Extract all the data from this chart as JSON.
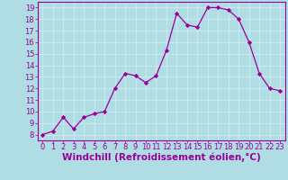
{
  "x": [
    0,
    1,
    2,
    3,
    4,
    5,
    6,
    7,
    8,
    9,
    10,
    11,
    12,
    13,
    14,
    15,
    16,
    17,
    18,
    19,
    20,
    21,
    22,
    23
  ],
  "y": [
    8,
    8.3,
    9.5,
    8.5,
    9.5,
    9.8,
    10,
    12,
    13.3,
    13.1,
    12.5,
    13.1,
    15.3,
    18.5,
    17.5,
    17.3,
    19,
    19,
    18.8,
    18,
    16,
    13.3,
    12,
    11.8
  ],
  "line_color": "#990099",
  "marker_color": "#990099",
  "bg_color": "#b0dde4",
  "grid_color": "#c8e8ee",
  "xlabel": "Windchill (Refroidissement éolien,°C)",
  "ylim": [
    7.5,
    19.5
  ],
  "xlim": [
    -0.5,
    23.5
  ],
  "yticks": [
    8,
    9,
    10,
    11,
    12,
    13,
    14,
    15,
    16,
    17,
    18,
    19
  ],
  "xticks": [
    0,
    1,
    2,
    3,
    4,
    5,
    6,
    7,
    8,
    9,
    10,
    11,
    12,
    13,
    14,
    15,
    16,
    17,
    18,
    19,
    20,
    21,
    22,
    23
  ],
  "xlabel_color": "#990099",
  "tick_color": "#990099",
  "axis_color": "#990099",
  "xlabel_fontsize": 7.5,
  "tick_fontsize": 6
}
